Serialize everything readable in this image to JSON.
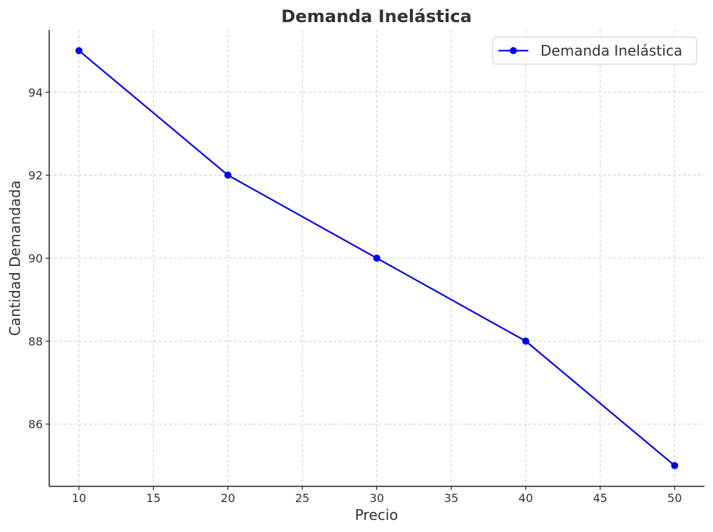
{
  "chart_data": {
    "type": "line",
    "title": "Demanda Inelástica",
    "xlabel": "Precio",
    "ylabel": "Cantidad Demandada",
    "x": [
      10,
      20,
      30,
      40,
      50
    ],
    "series": [
      {
        "name": "Demanda Inelástica",
        "values": [
          95,
          92,
          90,
          88,
          85
        ],
        "color": "#0000ee",
        "marker": "circle"
      }
    ],
    "xlim": [
      8,
      52
    ],
    "ylim": [
      84.5,
      95.5
    ],
    "xticks": [
      10,
      15,
      20,
      25,
      30,
      35,
      40,
      45,
      50
    ],
    "yticks": [
      86,
      88,
      90,
      92,
      94
    ],
    "grid": true,
    "legend_position": "top-right"
  }
}
